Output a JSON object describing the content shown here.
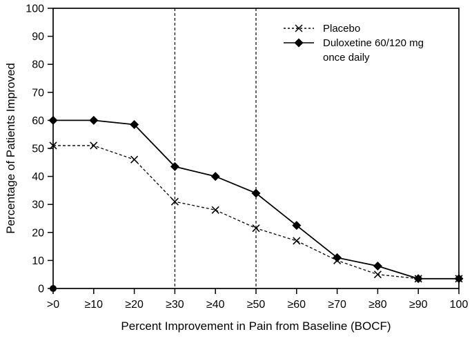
{
  "colors": {
    "foreground": "#000000",
    "background": "#ffffff"
  },
  "chart_data": {
    "type": "line",
    "title": "",
    "xlabel": "Percent Improvement in Pain from Baseline (BOCF)",
    "ylabel": "Percentage of Patients Improved",
    "categories": [
      ">0",
      "≥10",
      "≥20",
      "≥30",
      "≥40",
      "≥50",
      "≥60",
      "≥70",
      "≥80",
      "≥90",
      "100"
    ],
    "y_ticks": [
      0,
      10,
      20,
      30,
      40,
      50,
      60,
      70,
      80,
      90,
      100
    ],
    "ylim": [
      0,
      100
    ],
    "grid": false,
    "plot_border": true,
    "legend_position": "upper-right-inside",
    "series": [
      {
        "name": "Placebo",
        "marker": "x",
        "line_style": "dashed",
        "color": "#000000",
        "values": [
          51,
          51,
          46,
          31,
          28,
          21.5,
          17,
          10,
          5,
          3.5,
          3.5
        ]
      },
      {
        "name": "Duloxetine 60/120 mg once daily",
        "marker": "diamond",
        "line_style": "solid",
        "color": "#000000",
        "values": [
          60,
          60,
          58.5,
          43.5,
          40,
          34,
          22.5,
          11,
          8,
          3.5,
          3.5
        ]
      }
    ],
    "reference_lines": [
      {
        "axis": "x",
        "category": "≥30",
        "style": "dashed"
      },
      {
        "axis": "x",
        "category": "≥50",
        "style": "dashed"
      }
    ],
    "annotations": [
      {
        "type": "origin-dot",
        "category": ">0",
        "value": 0
      }
    ]
  },
  "legend": {
    "items": [
      {
        "label": "Placebo"
      },
      {
        "label_line1": "Duloxetine 60/120 mg",
        "label_line2": "once daily"
      }
    ]
  }
}
